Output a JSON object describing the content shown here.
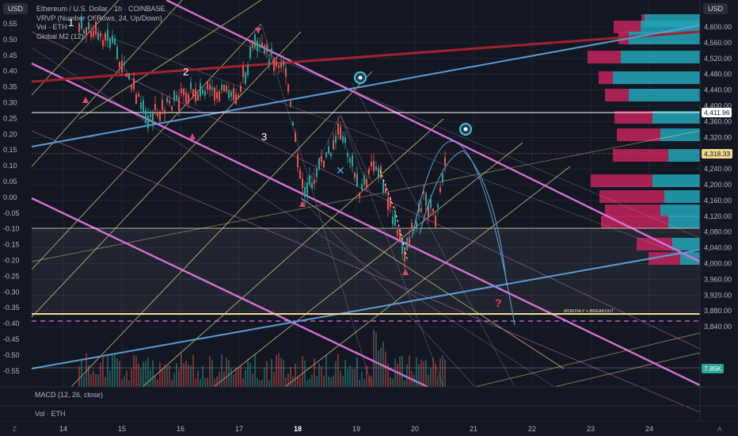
{
  "header": {
    "symbol": "Ethereum / U.S. Dollar · 1h · COINBASE",
    "indicators": [
      "VRVP (Number Of Rows, 24, Up/Down)",
      "Vol · ETH",
      "Global M2 (12)"
    ],
    "currency_left": "USD",
    "currency_right": "USD"
  },
  "left_axis": [
    "0.55",
    "0.50",
    "0.45",
    "0.40",
    "0.35",
    "0.30",
    "0.25",
    "0.20",
    "0.15",
    "0.10",
    "0.05",
    "0.00",
    "-0.05",
    "-0.10",
    "-0.15",
    "-0.20",
    "-0.25",
    "-0.30",
    "-0.35",
    "-0.40",
    "-0.45",
    "-0.50",
    "-0.55"
  ],
  "right_axis": [
    "4,600.00",
    "4,560.00",
    "4,520.00",
    "4,480.00",
    "4,440.00",
    "4,400.00",
    "4,360.00",
    "4,320.00",
    "4,280.00",
    "4,240.00",
    "4,200.00",
    "4,160.00",
    "4,120.00",
    "4,080.00",
    "4,040.00",
    "4,000.00",
    "3,960.00",
    "3,920.00",
    "3,880.00",
    "3,840.00"
  ],
  "price_tags": {
    "level": "4,411.96",
    "current": "4,318.33",
    "volume": "7.85K"
  },
  "time_axis": [
    "14",
    "15",
    "16",
    "17",
    "18",
    "19",
    "20",
    "21",
    "22",
    "23",
    "24"
  ],
  "time_axis_bold": "18",
  "annotations": {
    "wave_labels": [
      "1",
      "2",
      "3"
    ],
    "question": "?",
    "monthly_breakout": "MONTHLY > BREAKOUT"
  },
  "panes": {
    "macd": "MACD (12, 26, close)",
    "volume": "Vol · ETH"
  },
  "bottom_bar": {
    "left_icon": "Z",
    "right_icon": "A"
  },
  "colors": {
    "background": "#131722",
    "up": "#26a69a",
    "down": "#ef5350",
    "channel": "#d66fd6",
    "fib_lines": "#f0d98c",
    "blue_trend": "#5b9bd5",
    "red_trend": "#a3212b",
    "vp_up": "#22a6b8",
    "vp_down": "#c2255c"
  }
}
